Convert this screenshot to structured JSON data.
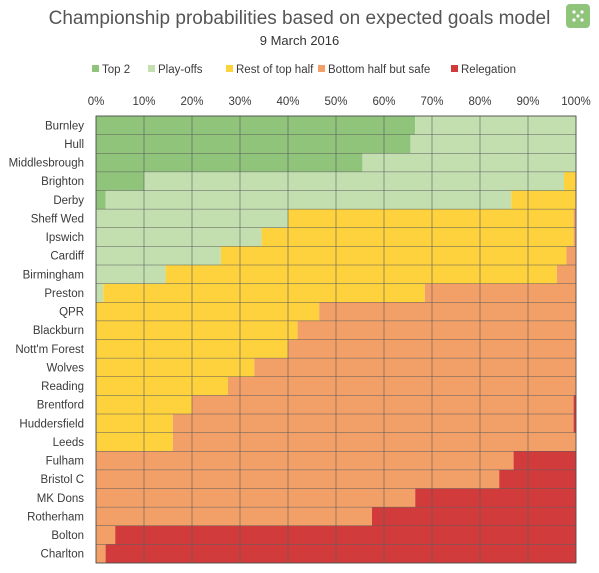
{
  "title": "Championship probabilities based on expected goals model",
  "subtitle": "9 March 2016",
  "logo": {
    "icon": "green-badge-icon",
    "color": "#8fc47a"
  },
  "chart_data": {
    "type": "bar",
    "orientation": "horizontal",
    "stacked": true,
    "legend_position": "top",
    "grid": true,
    "xlim": [
      0,
      100
    ],
    "x_ticks": [
      "0%",
      "10%",
      "20%",
      "30%",
      "40%",
      "50%",
      "60%",
      "70%",
      "80%",
      "90%",
      "100%"
    ],
    "categories": [
      "Burnley",
      "Hull",
      "Middlesbrough",
      "Brighton",
      "Derby",
      "Sheff Wed",
      "Ipswich",
      "Cardiff",
      "Birmingham",
      "Preston",
      "QPR",
      "Blackburn",
      "Nott'm Forest",
      "Wolves",
      "Reading",
      "Brentford",
      "Huddersfield",
      "Leeds",
      "Fulham",
      "Bristol C",
      "MK Dons",
      "Rotherham",
      "Bolton",
      "Charlton"
    ],
    "series": [
      {
        "name": "Top 2",
        "color": "#8fc47a",
        "values": [
          66.5,
          65.5,
          55.5,
          10,
          2,
          0,
          0,
          0,
          0,
          0,
          0,
          0,
          0,
          0,
          0,
          0,
          0,
          0,
          0,
          0,
          0,
          0,
          0,
          0
        ]
      },
      {
        "name": "Play-offs",
        "color": "#c3dfb0",
        "values": [
          33.5,
          34.5,
          44.5,
          87.5,
          84.5,
          40,
          34.5,
          26,
          14.5,
          1.5,
          0,
          0,
          0,
          0,
          0,
          0,
          0,
          0,
          0,
          0,
          0,
          0,
          0,
          0
        ]
      },
      {
        "name": "Rest of top half",
        "color": "#fdd23d",
        "values": [
          0,
          0,
          0,
          2.5,
          13.5,
          59.5,
          65,
          72,
          81.5,
          67,
          46.5,
          42,
          40,
          33,
          27.5,
          20,
          16,
          16,
          0,
          0,
          0,
          0,
          0,
          0
        ]
      },
      {
        "name": "Bottom half but safe",
        "color": "#f2a068",
        "values": [
          0,
          0,
          0,
          0,
          0,
          0.5,
          0.5,
          2,
          4,
          31.5,
          53.5,
          58,
          60,
          67,
          72.5,
          79.5,
          83.5,
          84,
          87,
          84,
          66.5,
          57.5,
          4,
          2
        ]
      },
      {
        "name": "Relegation",
        "color": "#d23b3b",
        "values": [
          0,
          0,
          0,
          0,
          0,
          0,
          0,
          0,
          0,
          0,
          0,
          0,
          0,
          0,
          0,
          0.5,
          0.5,
          0,
          13,
          16,
          33.5,
          42.5,
          96,
          98
        ]
      }
    ]
  }
}
